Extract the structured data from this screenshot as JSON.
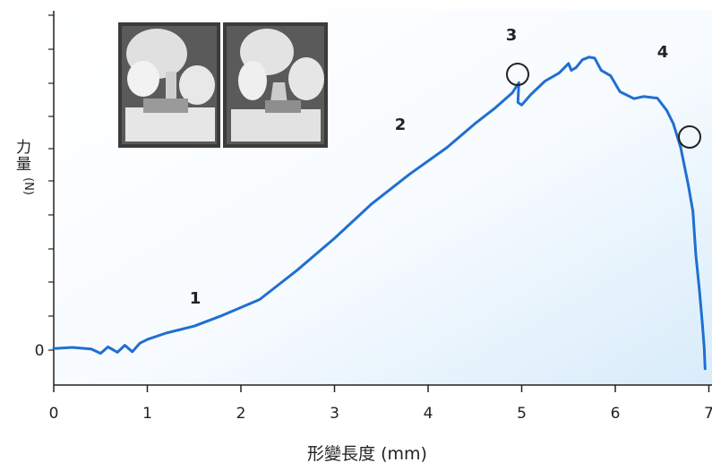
{
  "chart_data": {
    "type": "line",
    "title": "",
    "xlabel": "形變長度 (mm)",
    "ylabel": "力量",
    "yunit": "(N)",
    "xlim": [
      0,
      7
    ],
    "x_ticks": [
      "0",
      "1",
      "2",
      "3",
      "4",
      "5",
      "6",
      "7"
    ],
    "y_ticks": [
      "0"
    ],
    "grid": false,
    "line_color": "#1f6fd1",
    "series": [
      {
        "x": [
          0.0,
          0.2,
          0.4,
          0.5,
          0.58,
          0.68,
          0.76,
          0.84,
          0.92,
          1.0,
          1.2,
          1.5,
          1.8,
          2.2,
          2.6,
          3.0,
          3.4,
          3.8,
          4.2,
          4.5,
          4.72,
          4.9,
          4.97,
          4.96,
          5.0,
          5.1,
          5.25,
          5.4,
          5.5,
          5.53,
          5.58,
          5.65,
          5.72,
          5.78,
          5.85,
          5.95,
          6.05,
          6.2,
          6.3,
          6.45,
          6.55,
          6.62,
          6.7,
          6.78,
          6.83,
          6.86,
          6.9,
          6.93,
          6.95,
          6.96
        ],
        "y": [
          0.3,
          0.5,
          0.2,
          -0.6,
          0.6,
          -0.4,
          0.9,
          -0.3,
          1.3,
          2.0,
          3.2,
          4.5,
          6.5,
          9.5,
          15.0,
          21.0,
          27.5,
          33.0,
          38.0,
          42.5,
          45.5,
          48.3,
          50.2,
          46.5,
          46.0,
          48.0,
          50.5,
          52.0,
          53.8,
          52.5,
          53.0,
          54.5,
          55.0,
          54.8,
          52.5,
          51.5,
          48.5,
          47.2,
          47.6,
          47.3,
          45.0,
          42.5,
          38.0,
          31.0,
          26.0,
          18.0,
          11.0,
          5.0,
          0.5,
          -3.5
        ]
      }
    ],
    "annotations": [
      "1",
      "2",
      "3",
      "4"
    ]
  }
}
